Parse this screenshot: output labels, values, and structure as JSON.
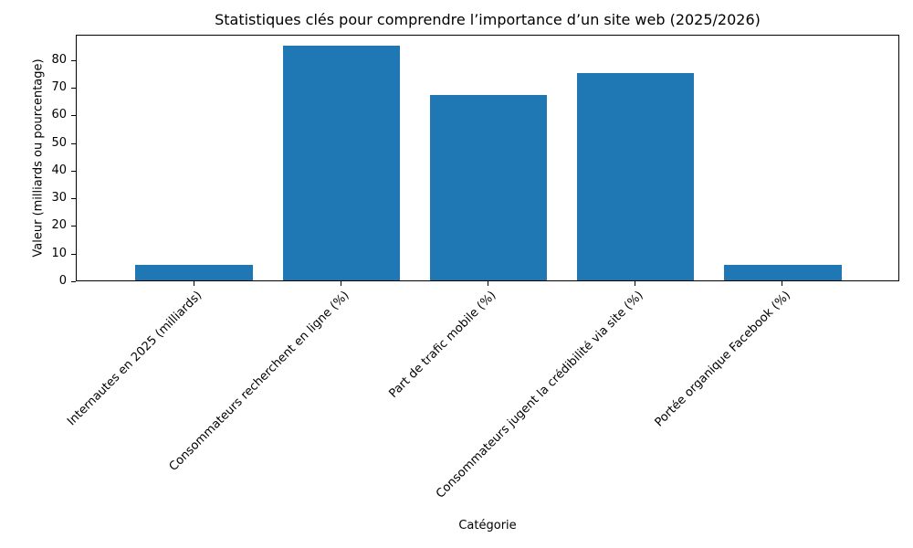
{
  "chart_data": {
    "type": "bar",
    "title": "Statistiques clés pour comprendre l’importance d’un site web (2025/2026)",
    "xlabel": "Catégorie",
    "ylabel": "Valeur (milliards ou pourcentage)",
    "categories": [
      "Internautes en 2025 (milliards)",
      "Consommateurs recherchent en ligne (%)",
      "Part de trafic mobile (%)",
      "Consommateurs jugent la crédibilité via site (%)",
      "Portée organique Facebook (%)"
    ],
    "values": [
      5.56,
      85,
      67,
      75,
      5.5
    ],
    "ylim": [
      0,
      89.25
    ],
    "yticks": [
      0,
      10,
      20,
      30,
      40,
      50,
      60,
      70,
      80
    ],
    "grid": false,
    "legend": null,
    "bar_color": "#1f77b4"
  }
}
